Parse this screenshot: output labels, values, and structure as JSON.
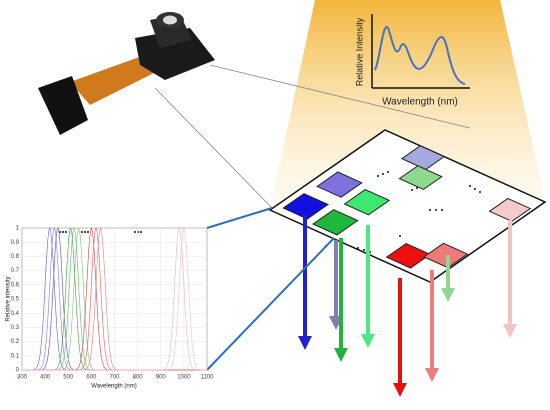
{
  "inset": {
    "y_label": "Relative Intensity",
    "x_label": "Wavelength (nm)"
  },
  "plot": {
    "y_label": "Relative intensity",
    "x_label": "Wavelength (nm)",
    "xlim": [
      300,
      1100
    ],
    "ylim": [
      0,
      1
    ],
    "xticks": [
      300,
      400,
      500,
      600,
      700,
      800,
      900,
      1000,
      1100
    ],
    "yticks": [
      0,
      0.1,
      0.2,
      0.3,
      0.4,
      0.5,
      0.6,
      0.7,
      0.8,
      0.9,
      1
    ]
  }
}
